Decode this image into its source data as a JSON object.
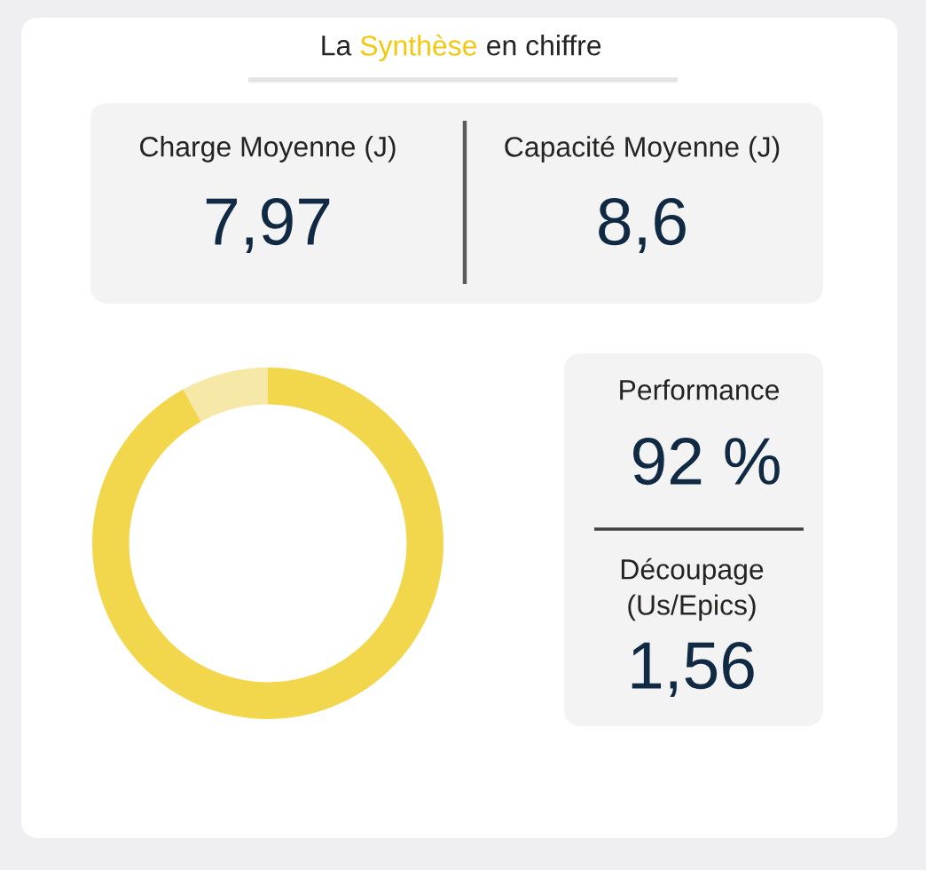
{
  "chart_data": [
    {
      "type": "other",
      "title": "La Synthèse en chiffre",
      "color": "#f2c80f",
      "annotations": [
        "Charge Moyenne (J)",
        "7,97",
        "Capacité Moyenne (J)",
        "8,6"
      ]
    },
    {
      "type": "donut",
      "categories": [
        null,
        null
      ],
      "values": [
        92,
        8
      ],
      "colors": [
        "#f2d64b",
        "#f6e8a6"
      ]
    },
    {
      "type": "other",
      "annotations": [
        "Performance",
        "92 %",
        "Découpage\n(Us/Epics)",
        "1,56"
      ]
    }
  ]
}
